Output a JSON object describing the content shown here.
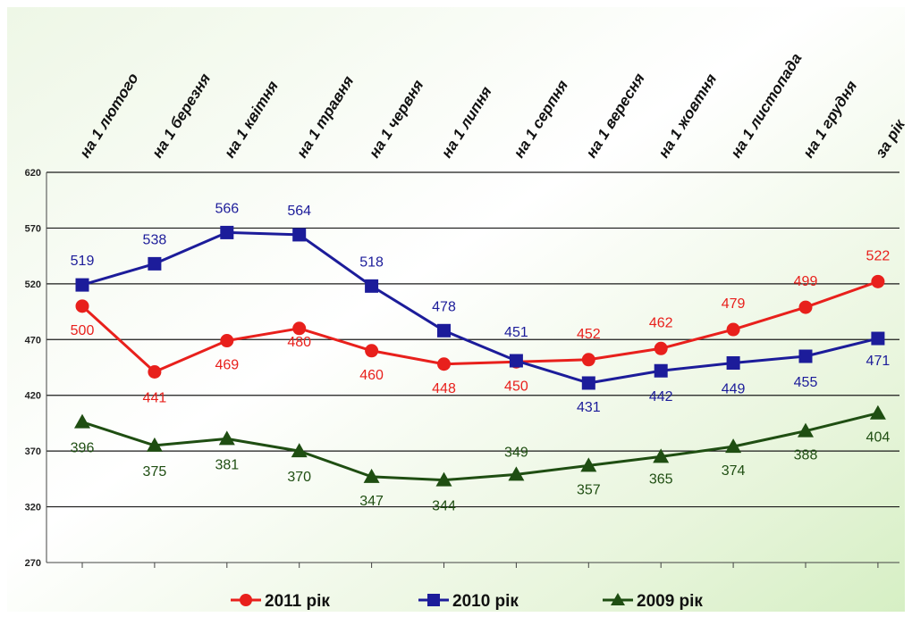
{
  "chart_data": {
    "type": "line",
    "title": "",
    "xlabel": "",
    "ylabel": "",
    "categories": [
      "на 1 лютого",
      "на 1 березня",
      "на 1 квітня",
      "на 1 травня",
      "на 1 червня",
      "на 1 липня",
      "на 1 серпня",
      "на 1 вересня",
      "на 1 жовтня",
      "на 1 листопада",
      "на 1 грудня",
      "за рік"
    ],
    "ylim": [
      270,
      620
    ],
    "yticks": [
      270,
      320,
      370,
      420,
      470,
      520,
      570,
      620
    ],
    "grid": true,
    "legend_position": "bottom",
    "series": [
      {
        "name": "2011 рік",
        "color": "#e8201c",
        "marker": "circle",
        "values": [
          500,
          441,
          469,
          480,
          460,
          448,
          450,
          452,
          462,
          479,
          499,
          522
        ]
      },
      {
        "name": "2010 рік",
        "color": "#1c1c9a",
        "marker": "square",
        "values": [
          519,
          538,
          566,
          564,
          518,
          478,
          451,
          431,
          442,
          449,
          455,
          471
        ]
      },
      {
        "name": "2009 рік",
        "color": "#1f4e12",
        "marker": "triangle",
        "values": [
          396,
          375,
          381,
          370,
          347,
          344,
          349,
          357,
          365,
          374,
          388,
          404
        ]
      }
    ]
  }
}
